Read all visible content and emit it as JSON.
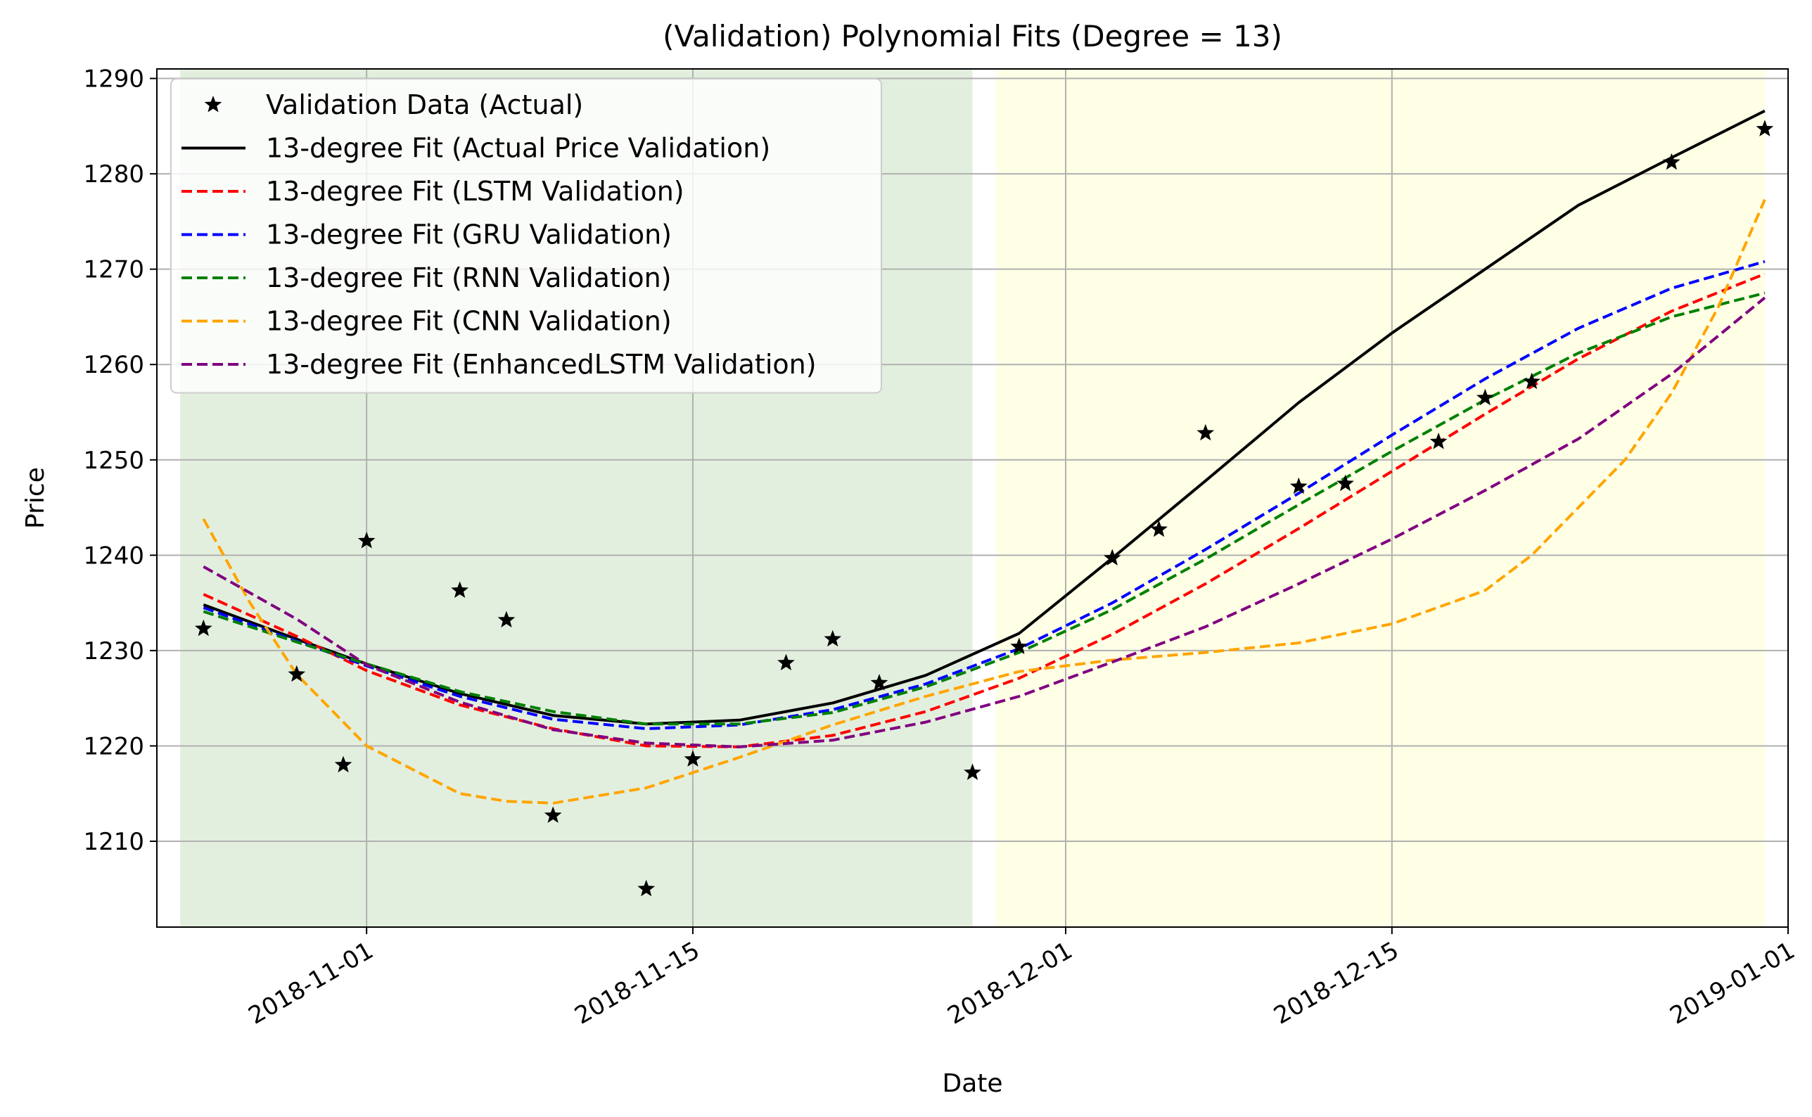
{
  "chart_data": {
    "type": "line",
    "title": "(Validation) Polynomial Fits (Degree = 13)",
    "xlabel": "Date",
    "ylabel": "Price",
    "xlim": [
      "2018-10-23",
      "2019-01-01"
    ],
    "ylim": [
      1201,
      1291
    ],
    "x_ticks": [
      "2018-11-01",
      "2018-11-15",
      "2018-12-01",
      "2018-12-15",
      "2019-01-01"
    ],
    "y_ticks": [
      1210,
      1220,
      1230,
      1240,
      1250,
      1260,
      1270,
      1280,
      1290
    ],
    "grid": true,
    "legend_position": "upper-left",
    "shaded_regions": [
      {
        "from": "2018-10-24",
        "to": "2018-11-27",
        "color": "#d9ead3"
      },
      {
        "from": "2018-11-28",
        "to": "2018-12-31",
        "color": "#ffffdd"
      }
    ],
    "scatter": {
      "name": "Validation Data (Actual)",
      "color": "#000000",
      "marker": "star",
      "x": [
        "2018-10-25",
        "2018-10-29",
        "2018-10-31",
        "2018-11-01",
        "2018-11-05",
        "2018-11-07",
        "2018-11-09",
        "2018-11-13",
        "2018-11-15",
        "2018-11-19",
        "2018-11-21",
        "2018-11-23",
        "2018-11-27",
        "2018-11-29",
        "2018-12-03",
        "2018-12-05",
        "2018-12-07",
        "2018-12-11",
        "2018-12-13",
        "2018-12-17",
        "2018-12-19",
        "2018-12-21",
        "2018-12-27",
        "2018-12-31"
      ],
      "y": [
        1232.3,
        1227.5,
        1218.0,
        1241.5,
        1236.3,
        1233.2,
        1212.7,
        1205.0,
        1218.6,
        1228.7,
        1231.2,
        1226.6,
        1217.2,
        1230.4,
        1239.7,
        1242.7,
        1252.8,
        1247.2,
        1247.5,
        1251.9,
        1256.5,
        1258.2,
        1281.2,
        1284.7
      ]
    },
    "series": [
      {
        "name": "13-degree Fit (Actual Price Validation)",
        "color": "#000000",
        "dash": "solid",
        "x": [
          "2018-10-25",
          "2018-10-29",
          "2018-11-01",
          "2018-11-05",
          "2018-11-09",
          "2018-11-13",
          "2018-11-17",
          "2018-11-21",
          "2018-11-25",
          "2018-11-29",
          "2018-12-03",
          "2018-12-07",
          "2018-12-11",
          "2018-12-15",
          "2018-12-19",
          "2018-12-23",
          "2018-12-27",
          "2018-12-31"
        ],
        "y": [
          1234.8,
          1231.2,
          1228.6,
          1225.5,
          1223.2,
          1222.3,
          1222.7,
          1224.5,
          1227.4,
          1231.8,
          1239.7,
          1247.8,
          1256.0,
          1263.3,
          1270.0,
          1276.7,
          1281.7,
          1286.6
        ]
      },
      {
        "name": "13-degree Fit (LSTM Validation)",
        "color": "#ff0000",
        "dash": "dashed",
        "x": [
          "2018-10-25",
          "2018-10-29",
          "2018-11-01",
          "2018-11-05",
          "2018-11-09",
          "2018-11-13",
          "2018-11-17",
          "2018-11-21",
          "2018-11-25",
          "2018-11-29",
          "2018-12-03",
          "2018-12-07",
          "2018-12-11",
          "2018-12-15",
          "2018-12-19",
          "2018-12-23",
          "2018-12-27",
          "2018-12-31"
        ],
        "y": [
          1235.9,
          1231.5,
          1227.9,
          1224.3,
          1221.8,
          1220.0,
          1219.9,
          1221.1,
          1223.6,
          1227.1,
          1231.7,
          1237.0,
          1242.8,
          1248.8,
          1254.8,
          1260.6,
          1265.6,
          1269.5
        ]
      },
      {
        "name": "13-degree Fit (GRU Validation)",
        "color": "#0000ff",
        "dash": "dashed",
        "x": [
          "2018-10-25",
          "2018-10-29",
          "2018-11-01",
          "2018-11-05",
          "2018-11-09",
          "2018-11-13",
          "2018-11-17",
          "2018-11-21",
          "2018-11-25",
          "2018-11-29",
          "2018-12-03",
          "2018-12-07",
          "2018-12-11",
          "2018-12-15",
          "2018-12-19",
          "2018-12-23",
          "2018-12-27",
          "2018-12-31"
        ],
        "y": [
          1234.5,
          1231.0,
          1228.4,
          1225.2,
          1222.8,
          1221.8,
          1222.2,
          1223.8,
          1226.5,
          1230.2,
          1235.0,
          1240.6,
          1246.5,
          1252.6,
          1258.5,
          1263.8,
          1268.0,
          1270.8
        ]
      },
      {
        "name": "13-degree Fit (RNN Validation)",
        "color": "#008000",
        "dash": "dashed",
        "x": [
          "2018-10-25",
          "2018-10-29",
          "2018-11-01",
          "2018-11-05",
          "2018-11-09",
          "2018-11-13",
          "2018-11-17",
          "2018-11-21",
          "2018-11-25",
          "2018-11-29",
          "2018-12-03",
          "2018-12-07",
          "2018-12-11",
          "2018-12-15",
          "2018-12-19",
          "2018-12-23",
          "2018-12-27",
          "2018-12-31"
        ],
        "y": [
          1234.1,
          1230.9,
          1228.6,
          1225.7,
          1223.6,
          1222.3,
          1222.3,
          1223.5,
          1226.2,
          1229.8,
          1234.3,
          1239.6,
          1245.3,
          1250.9,
          1256.3,
          1261.2,
          1265.0,
          1267.5
        ]
      },
      {
        "name": "13-degree Fit (CNN Validation)",
        "color": "#ffa500",
        "dash": "dashed",
        "x": [
          "2018-10-25",
          "2018-10-27",
          "2018-10-29",
          "2018-11-01",
          "2018-11-05",
          "2018-11-07",
          "2018-11-09",
          "2018-11-13",
          "2018-11-17",
          "2018-11-21",
          "2018-11-25",
          "2018-11-29",
          "2018-12-03",
          "2018-12-07",
          "2018-12-11",
          "2018-12-15",
          "2018-12-19",
          "2018-12-21",
          "2018-12-25",
          "2018-12-27",
          "2018-12-29",
          "2018-12-31"
        ],
        "y": [
          1243.8,
          1235.0,
          1227.5,
          1220.0,
          1215.0,
          1214.2,
          1214.0,
          1215.6,
          1218.8,
          1222.2,
          1225.2,
          1227.8,
          1229.0,
          1229.8,
          1230.8,
          1232.8,
          1236.3,
          1240.0,
          1250.0,
          1257.0,
          1266.0,
          1277.3
        ]
      },
      {
        "name": "13-degree Fit (EnhancedLSTM Validation)",
        "color": "#800080",
        "dash": "dashed",
        "x": [
          "2018-10-25",
          "2018-10-29",
          "2018-11-01",
          "2018-11-05",
          "2018-11-09",
          "2018-11-13",
          "2018-11-17",
          "2018-11-21",
          "2018-11-25",
          "2018-11-29",
          "2018-12-03",
          "2018-12-07",
          "2018-12-11",
          "2018-12-15",
          "2018-12-19",
          "2018-12-23",
          "2018-12-27",
          "2018-12-31"
        ],
        "y": [
          1238.8,
          1233.3,
          1228.5,
          1224.6,
          1221.7,
          1220.3,
          1219.9,
          1220.6,
          1222.5,
          1225.2,
          1228.8,
          1232.5,
          1237.0,
          1241.7,
          1246.8,
          1252.2,
          1259.0,
          1267.0
        ]
      }
    ]
  }
}
